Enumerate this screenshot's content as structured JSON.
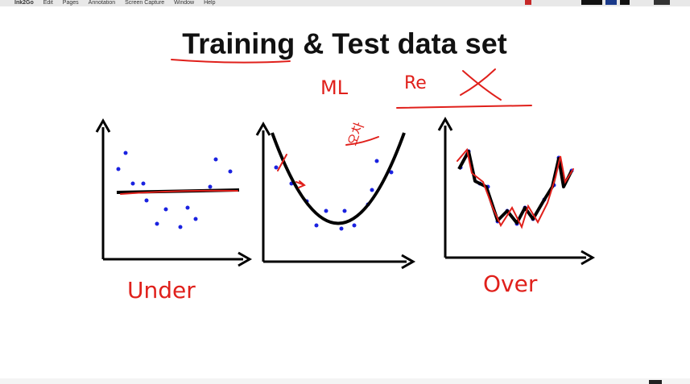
{
  "menu_bar": {
    "items": [
      "Ink2Go",
      "Edit",
      "Pages",
      "Annotation",
      "Screen Capture",
      "Window",
      "Help"
    ]
  },
  "slide": {
    "title": "Training & Test data set",
    "handwriting": {
      "top_left": "ML",
      "top_right": "Re",
      "middle_panel": "오차",
      "left_panel": "Under",
      "right_panel": "Over"
    }
  }
}
